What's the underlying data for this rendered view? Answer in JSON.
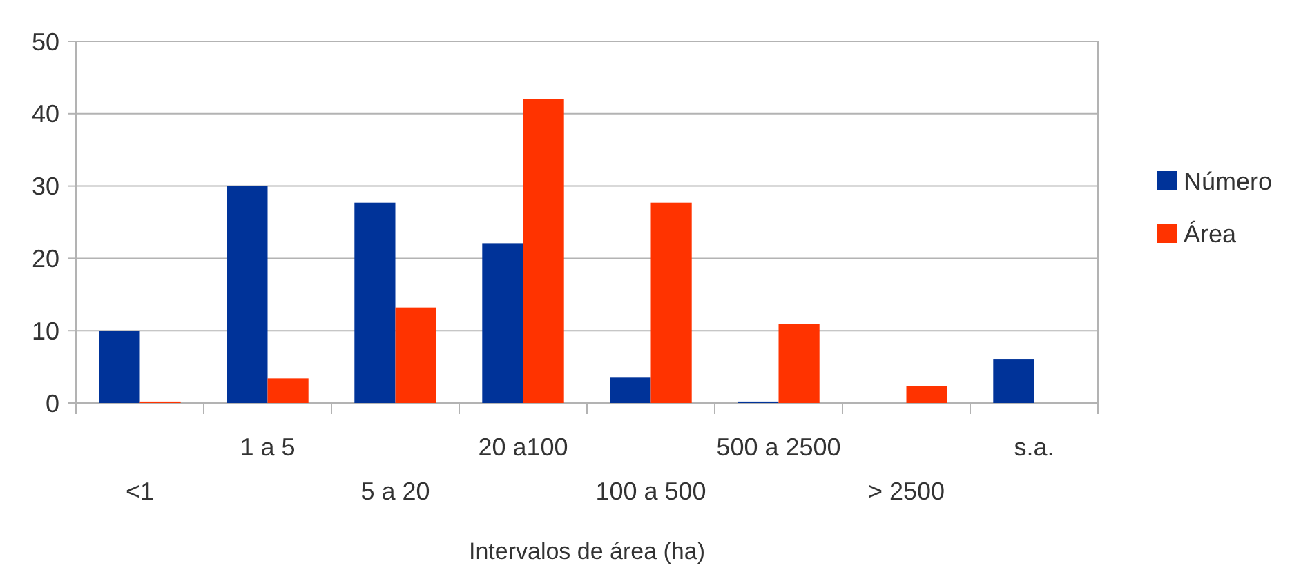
{
  "chart_data": {
    "type": "bar",
    "xlabel": "Intervalos de área (ha)",
    "categories": [
      "<1",
      "1 a 5",
      "5 a 20",
      "20 a100",
      "100 a 500",
      "500 a 2500",
      "> 2500",
      "s.a."
    ],
    "series": [
      {
        "name": "Número",
        "color": "#003399",
        "values": [
          10,
          30,
          27.7,
          22.1,
          3.5,
          0.2,
          0,
          6.1
        ]
      },
      {
        "name": "Área",
        "color": "#ff3300",
        "values": [
          0.2,
          3.4,
          13.2,
          42,
          27.7,
          10.9,
          2.3,
          0
        ]
      }
    ],
    "ylim": [
      0,
      50
    ],
    "yticks": [
      0,
      10,
      20,
      30,
      40,
      50
    ],
    "grid": "y",
    "legend": "right"
  }
}
